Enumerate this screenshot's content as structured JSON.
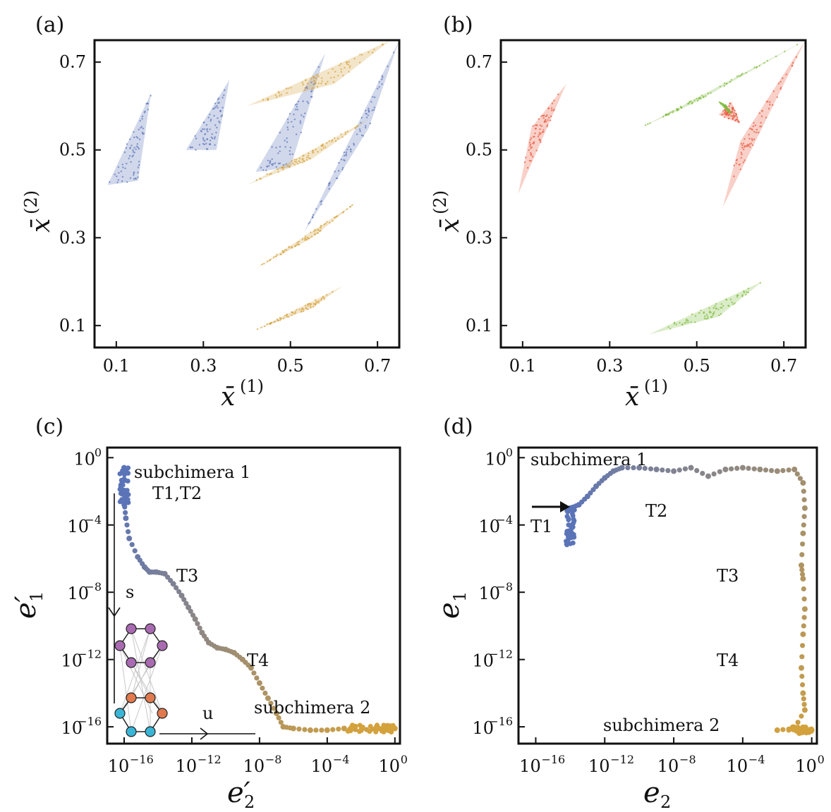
{
  "chart_data": [
    {
      "panel": "(a)",
      "type": "scatter",
      "xlabel": "x̄",
      "xlabel_sup": "(1)",
      "ylabel": "x̄",
      "ylabel_sup": "(2)",
      "xlim": [
        0.05,
        0.75
      ],
      "ylim": [
        0.05,
        0.75
      ],
      "xticks": [
        0.1,
        0.3,
        0.5,
        0.7
      ],
      "yticks": [
        0.1,
        0.3,
        0.5,
        0.7
      ],
      "xtick_labels": [
        "0.1",
        "0.3",
        "0.5",
        "0.7"
      ],
      "ytick_labels": [
        "0.1",
        "0.3",
        "0.5",
        "0.7"
      ],
      "series": [
        {
          "color": "#5b74b8",
          "clusters": [
            {
              "points": [
                [
                  0.08,
                  0.42
                ],
                [
                  0.18,
                  0.63
                ],
                [
                  0.15,
                  0.43
                ]
              ]
            },
            {
              "points": [
                [
                  0.26,
                  0.5
                ],
                [
                  0.36,
                  0.66
                ],
                [
                  0.33,
                  0.5
                ]
              ]
            },
            {
              "points": [
                [
                  0.42,
                  0.45
                ],
                [
                  0.58,
                  0.72
                ],
                [
                  0.5,
                  0.46
                ]
              ]
            },
            {
              "points": [
                [
                  0.53,
                  0.31
                ],
                [
                  0.75,
                  0.75
                ],
                [
                  0.68,
                  0.55
                ]
              ]
            }
          ]
        },
        {
          "color": "#d4a23c",
          "clusters": [
            {
              "points": [
                [
                  0.4,
                  0.6
                ],
                [
                  0.73,
                  0.75
                ],
                [
                  0.6,
                  0.65
                ]
              ]
            },
            {
              "points": [
                [
                  0.4,
                  0.42
                ],
                [
                  0.68,
                  0.57
                ],
                [
                  0.55,
                  0.48
                ]
              ]
            },
            {
              "points": [
                [
                  0.42,
                  0.23
                ],
                [
                  0.65,
                  0.38
                ],
                [
                  0.55,
                  0.3
                ]
              ]
            },
            {
              "points": [
                [
                  0.42,
                  0.09
                ],
                [
                  0.62,
                  0.19
                ],
                [
                  0.55,
                  0.14
                ]
              ]
            }
          ]
        }
      ]
    },
    {
      "panel": "(b)",
      "type": "scatter",
      "xlabel": "x̄",
      "xlabel_sup": "(1)",
      "ylabel": "x̄",
      "ylabel_sup": "(2)",
      "xlim": [
        0.05,
        0.75
      ],
      "ylim": [
        0.05,
        0.75
      ],
      "xticks": [
        0.1,
        0.3,
        0.5,
        0.7
      ],
      "yticks": [
        0.1,
        0.3,
        0.5,
        0.7
      ],
      "xtick_labels": [
        "0.1",
        "0.3",
        "0.5",
        "0.7"
      ],
      "ytick_labels": [
        "0.1",
        "0.3",
        "0.5",
        "0.7"
      ],
      "series": [
        {
          "color": "#e8563a",
          "clusters": [
            {
              "points": [
                [
                  0.09,
                  0.4
                ],
                [
                  0.2,
                  0.65
                ],
                [
                  0.12,
                  0.55
                ]
              ]
            },
            {
              "points": [
                [
                  0.56,
                  0.37
                ],
                [
                  0.75,
                  0.75
                ],
                [
                  0.6,
                  0.52
                ]
              ]
            },
            {
              "points": [
                [
                  0.55,
                  0.58
                ],
                [
                  0.6,
                  0.56
                ],
                [
                  0.58,
                  0.61
                ]
              ]
            }
          ]
        },
        {
          "color": "#7dba3c",
          "clusters": [
            {
              "points": [
                [
                  0.37,
                  0.55
                ],
                [
                  0.75,
                  0.75
                ],
                [
                  0.5,
                  0.61
                ]
              ]
            },
            {
              "points": [
                [
                  0.39,
                  0.08
                ],
                [
                  0.65,
                  0.2
                ],
                [
                  0.55,
                  0.12
                ]
              ]
            },
            {
              "points": [
                [
                  0.55,
                  0.61
                ],
                [
                  0.58,
                  0.58
                ],
                [
                  0.57,
                  0.6
                ]
              ]
            }
          ]
        }
      ]
    },
    {
      "panel": "(c)",
      "type": "scatter",
      "xlabel": "e′",
      "xlabel_sub": "2",
      "ylabel": "e′",
      "ylabel_sub": "1",
      "log_scale": true,
      "xlim_exp": [
        -17,
        0.3
      ],
      "ylim_exp": [
        -17,
        0.6
      ],
      "xtick_exps": [
        -16,
        -12,
        -8,
        -4,
        0
      ],
      "ytick_exps": [
        -16,
        -12,
        -8,
        -4,
        0
      ],
      "xtick_labels": [
        "10^-16",
        "10^-12",
        "10^-8",
        "10^-4",
        "10^0"
      ],
      "ytick_labels": [
        "10^-16",
        "10^-12",
        "10^-8",
        "10^-4",
        "10^0"
      ],
      "color_start": "#5b74b8",
      "color_end": "#d4a23c",
      "trajectory_log10": [
        [
          -16.0,
          -0.6
        ],
        [
          -16.0,
          -2.6
        ],
        [
          -15.9,
          -3.6
        ],
        [
          -15.7,
          -4.8
        ],
        [
          -15.2,
          -5.9
        ],
        [
          -14.8,
          -6.5
        ],
        [
          -14.5,
          -6.8
        ],
        [
          -14.1,
          -6.8
        ],
        [
          -13.6,
          -6.9
        ],
        [
          -13.1,
          -7.5
        ],
        [
          -12.6,
          -8.2
        ],
        [
          -12.2,
          -8.9
        ],
        [
          -11.8,
          -9.6
        ],
        [
          -11.4,
          -10.4
        ],
        [
          -11.0,
          -11.0
        ],
        [
          -10.5,
          -11.3
        ],
        [
          -10.0,
          -11.4
        ],
        [
          -9.5,
          -11.6
        ],
        [
          -9.0,
          -12.0
        ],
        [
          -8.5,
          -12.5
        ],
        [
          -8.0,
          -13.4
        ],
        [
          -7.5,
          -14.3
        ],
        [
          -7.0,
          -15.2
        ],
        [
          -6.6,
          -16.0
        ],
        [
          -6.0,
          -16.1
        ],
        [
          -5.0,
          -16.2
        ],
        [
          -4.0,
          -16.2
        ],
        [
          -3.0,
          -16.1
        ],
        [
          -2.0,
          -16.2
        ],
        [
          -1.0,
          -16.1
        ],
        [
          0.0,
          -16.1
        ]
      ],
      "annotations": [
        "subchimera 1",
        "T1,T2",
        "T3",
        "T4",
        "subchimera 2",
        "s",
        "u"
      ]
    },
    {
      "panel": "(d)",
      "type": "scatter",
      "xlabel": "e",
      "xlabel_sub": "2",
      "ylabel": "e",
      "ylabel_sub": "1",
      "log_scale": true,
      "xlim_exp": [
        -17,
        0.3
      ],
      "ylim_exp": [
        -17,
        0.6
      ],
      "xtick_exps": [
        -16,
        -12,
        -8,
        -4,
        0
      ],
      "ytick_exps": [
        -16,
        -12,
        -8,
        -4,
        0
      ],
      "xtick_labels": [
        "10^-16",
        "10^-12",
        "10^-8",
        "10^-4",
        "10^0"
      ],
      "ytick_labels": [
        "10^-16",
        "10^-12",
        "10^-8",
        "10^-4",
        "10^0"
      ],
      "color_start": "#5b74b8",
      "color_end": "#d4a23c",
      "trajectory_log10": [
        [
          -14.0,
          -3.0
        ],
        [
          -13.5,
          -2.8
        ],
        [
          -13.0,
          -2.3
        ],
        [
          -12.5,
          -1.7
        ],
        [
          -12.0,
          -1.2
        ],
        [
          -11.5,
          -0.8
        ],
        [
          -11.0,
          -0.6
        ],
        [
          -10.0,
          -0.6
        ],
        [
          -9.0,
          -0.7
        ],
        [
          -8.0,
          -0.8
        ],
        [
          -7.0,
          -0.6
        ],
        [
          -6.0,
          -1.1
        ],
        [
          -5.0,
          -0.7
        ],
        [
          -4.0,
          -0.6
        ],
        [
          -3.0,
          -0.7
        ],
        [
          -2.0,
          -0.8
        ],
        [
          -1.0,
          -0.7
        ],
        [
          -0.5,
          -1.5
        ],
        [
          -0.4,
          -3.0
        ],
        [
          -0.5,
          -4.5
        ],
        [
          -0.6,
          -6.4
        ],
        [
          -0.5,
          -7.2
        ],
        [
          -0.4,
          -9.0
        ],
        [
          -0.5,
          -10.5
        ],
        [
          -0.6,
          -12.5
        ],
        [
          -0.5,
          -14.0
        ],
        [
          -0.4,
          -15.0
        ],
        [
          -1.0,
          -16.1
        ],
        [
          -2.0,
          -16.2
        ],
        [
          0.0,
          -16.2
        ]
      ],
      "annotations": [
        "subchimera 1",
        "T1",
        "T2",
        "T3",
        "T4",
        "subchimera 2"
      ]
    }
  ]
}
